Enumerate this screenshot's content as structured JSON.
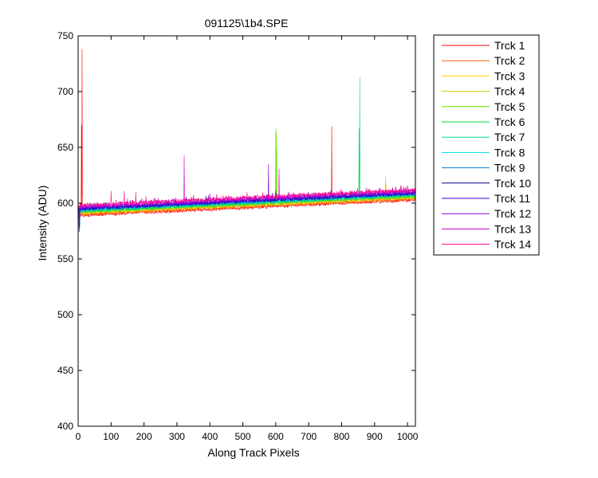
{
  "chart_data": {
    "type": "line",
    "title": "091125\\1b4.SPE",
    "xlabel": "Along Track Pixels",
    "ylabel": "Intensity (ADU)",
    "xlim": [
      0,
      1024
    ],
    "ylim": [
      400,
      750
    ],
    "xticks": [
      0,
      100,
      200,
      300,
      400,
      500,
      600,
      700,
      800,
      900,
      1000
    ],
    "yticks": [
      400,
      450,
      500,
      550,
      600,
      650,
      700,
      750
    ],
    "grid": false,
    "legend_position": "outside-right",
    "series": [
      {
        "name": "Trck 1",
        "color": "#ff0000",
        "start": 589,
        "end": 603,
        "spikes": [
          [
            12,
            738
          ],
          [
            10,
            670
          ],
          [
            770,
            669
          ],
          [
            130,
            599
          ],
          [
            450,
            598
          ]
        ]
      },
      {
        "name": "Trck 2",
        "color": "#ff6600",
        "start": 590,
        "end": 604,
        "spikes": [
          [
            12,
            606
          ],
          [
            700,
            606
          ]
        ]
      },
      {
        "name": "Trck 3",
        "color": "#ffcc00",
        "start": 591,
        "end": 605,
        "spikes": [
          [
            935,
            617
          ]
        ]
      },
      {
        "name": "Trck 4",
        "color": "#cccc00",
        "start": 592,
        "end": 606,
        "spikes": [
          [
            933,
            624
          ],
          [
            603,
            648
          ]
        ]
      },
      {
        "name": "Trck 5",
        "color": "#66e600",
        "start": 592,
        "end": 606,
        "spikes": [
          [
            600,
            667
          ],
          [
            602,
            664
          ]
        ]
      },
      {
        "name": "Trck 6",
        "color": "#00dd44",
        "start": 593,
        "end": 607,
        "spikes": [
          [
            853,
            667
          ]
        ]
      },
      {
        "name": "Trck 7",
        "color": "#00dd88",
        "start": 593,
        "end": 607,
        "spikes": [
          [
            855,
            713
          ]
        ]
      },
      {
        "name": "Trck 8",
        "color": "#00dddd",
        "start": 594,
        "end": 608,
        "spikes": []
      },
      {
        "name": "Trck 9",
        "color": "#0088dd",
        "start": 594,
        "end": 608,
        "spikes": [
          [
            5,
            578
          ]
        ]
      },
      {
        "name": "Trck 10",
        "color": "#000088",
        "start": 595,
        "end": 609,
        "spikes": [
          [
            3,
            574
          ]
        ]
      },
      {
        "name": "Trck 11",
        "color": "#4400dd",
        "start": 595,
        "end": 609,
        "spikes": [
          [
            4,
            578
          ]
        ]
      },
      {
        "name": "Trck 12",
        "color": "#8800dd",
        "start": 596,
        "end": 610,
        "spikes": [
          [
            578,
            635
          ],
          [
            4,
            583
          ]
        ]
      },
      {
        "name": "Trck 13",
        "color": "#cc00cc",
        "start": 597,
        "end": 611,
        "spikes": [
          [
            322,
            643
          ],
          [
            610,
            631
          ]
        ]
      },
      {
        "name": "Trck 14",
        "color": "#ff0088",
        "start": 598,
        "end": 612,
        "spikes": [
          [
            140,
            611
          ],
          [
            175,
            610
          ],
          [
            100,
            611
          ]
        ]
      }
    ]
  }
}
